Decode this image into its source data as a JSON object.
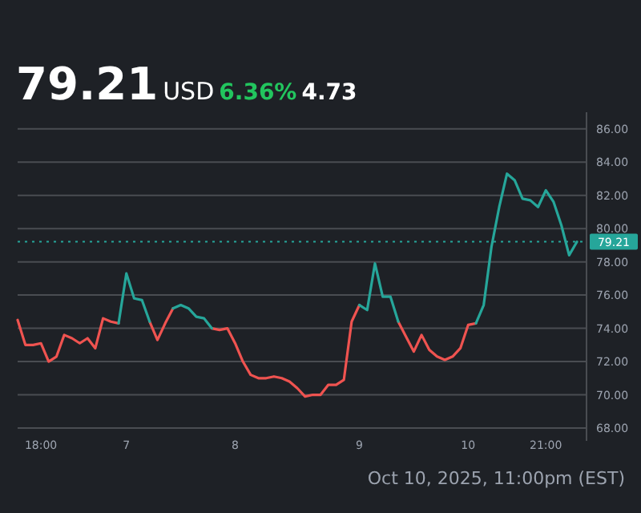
{
  "chart_data": {
    "type": "line",
    "title": "79.21",
    "subtitle": "USD",
    "annotations": [
      "6.36%",
      "4.73",
      "Oct 10, 2025, 11:00pm (EST)"
    ],
    "categories": [
      null,
      null,
      null,
      "18:00",
      null,
      null,
      null,
      null,
      null,
      null,
      null,
      null,
      null,
      null,
      "7",
      null,
      null,
      null,
      null,
      null,
      null,
      null,
      null,
      null,
      null,
      null,
      null,
      null,
      "8",
      null,
      null,
      null,
      null,
      null,
      null,
      null,
      null,
      null,
      null,
      null,
      null,
      null,
      null,
      null,
      "9",
      null,
      null,
      null,
      null,
      null,
      null,
      null,
      null,
      null,
      null,
      null,
      null,
      null,
      "10",
      null,
      null,
      null,
      null,
      null,
      null,
      null,
      null,
      null,
      "21:00",
      null,
      null,
      null,
      null
    ],
    "ylim": [
      68,
      87
    ],
    "yticks": [
      {
        "value": 68,
        "label": "68.00"
      },
      {
        "value": 70,
        "label": "70.00"
      },
      {
        "value": 72,
        "label": "72.00"
      },
      {
        "value": 74,
        "label": "74.00"
      },
      {
        "value": 76,
        "label": "76.00"
      },
      {
        "value": 78,
        "label": "78.00"
      },
      {
        "value": 80,
        "label": "80.00"
      },
      {
        "value": 82,
        "label": "82.00"
      },
      {
        "value": 84,
        "label": "84.00"
      },
      {
        "value": 86,
        "label": "86.00"
      }
    ],
    "grid": "y",
    "line_style": "solid",
    "ref_lines": [
      {
        "axis": "y",
        "value": 79.21,
        "label": "79.21",
        "color": "#26a69a",
        "line_style": "dotted"
      }
    ],
    "series": [
      {
        "color": "#ef5350",
        "values": [
          74.5,
          73.0,
          73.0,
          73.1,
          72.0,
          72.3,
          73.6,
          73.4,
          73.1,
          73.4,
          72.8,
          74.6,
          74.4,
          74.3,
          null,
          null,
          null,
          74.4,
          73.3,
          74.3,
          75.2,
          null,
          null,
          null,
          null,
          74.0,
          73.9,
          74.0,
          73.1,
          72.0,
          71.2,
          71.0,
          71.0,
          71.1,
          71.0,
          70.8,
          70.4,
          69.9,
          70.0,
          70.0,
          70.6,
          70.6,
          70.9,
          74.4,
          75.4,
          null,
          null,
          null,
          null,
          74.4,
          73.5,
          72.6,
          73.6,
          72.7,
          72.3,
          72.1,
          72.3,
          72.8,
          74.2,
          74.3,
          null,
          null,
          null,
          null,
          null,
          null,
          null,
          null,
          null,
          null,
          null,
          null,
          null
        ]
      },
      {
        "color": "#26a69a",
        "values": [
          null,
          null,
          null,
          null,
          null,
          null,
          null,
          null,
          null,
          null,
          null,
          null,
          null,
          74.3,
          77.3,
          75.8,
          75.7,
          74.4,
          null,
          null,
          75.2,
          75.4,
          75.2,
          74.7,
          74.6,
          74.0,
          null,
          null,
          null,
          null,
          null,
          null,
          null,
          null,
          null,
          null,
          null,
          null,
          null,
          null,
          null,
          null,
          null,
          null,
          75.4,
          75.1,
          77.9,
          75.9,
          75.9,
          74.4,
          null,
          null,
          null,
          null,
          null,
          null,
          null,
          null,
          null,
          74.3,
          75.4,
          78.9,
          81.3,
          83.3,
          82.9,
          81.8,
          81.7,
          81.3,
          82.3,
          81.6,
          80.2,
          78.4,
          79.2
        ]
      }
    ]
  }
}
